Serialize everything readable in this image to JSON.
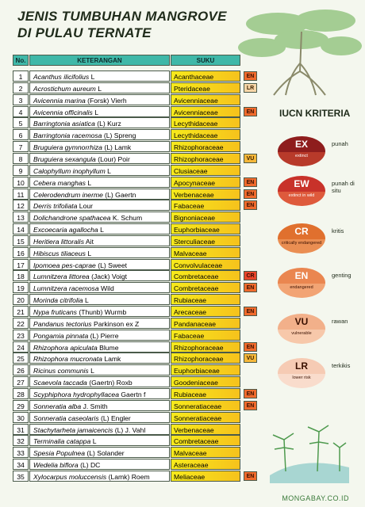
{
  "header": {
    "title_line1": "JENIS TUMBUHAN MANGROVE",
    "title_line2": "DI PULAU TERNATE"
  },
  "table": {
    "columns": [
      "No.",
      "KETERANGAN",
      "SUKU"
    ],
    "rows": [
      {
        "no": 1,
        "species": "Acanthus ilicifolius",
        "author": "L",
        "suku": "Acanthaceae",
        "status": "EN"
      },
      {
        "no": 2,
        "species": "Acrostichum aureum",
        "author": "L",
        "suku": "Pteridaceae",
        "status": "LR"
      },
      {
        "no": 3,
        "species": "Avicennia marina",
        "author": "(Forsk) Vierh",
        "suku": "Avicenniaceae"
      },
      {
        "no": 4,
        "species": "Avicennia officinalis",
        "author": "L",
        "suku": "Avicenniaceae",
        "status": "EN"
      },
      {
        "no": 5,
        "species": "Barringtonia asiatica",
        "author": "(L) Kurz",
        "suku": "Lecythidaceae"
      },
      {
        "no": 6,
        "species": "Barringtonia racemosa",
        "author": "(L) Spreng",
        "suku": "Lecythidaceae"
      },
      {
        "no": 7,
        "species": "Bruguiera gymnorrhiza",
        "author": "(L) Lamk",
        "suku": "Rhizophoraceae"
      },
      {
        "no": 8,
        "species": "Bruguiera sexangula",
        "author": "(Lour) Poir",
        "suku": "Rhizophoraceae",
        "status": "VU"
      },
      {
        "no": 9,
        "species": "Calophyllum inophyllum",
        "author": "L",
        "suku": "Clusiaceae"
      },
      {
        "no": 10,
        "species": "Cebera manghas",
        "author": "L",
        "suku": "Apocynaceae",
        "status": "EN"
      },
      {
        "no": 11,
        "species": "Celerodendrum inerme",
        "author": "(L) Gaertn",
        "suku": "Verbenaceae",
        "status": "EN"
      },
      {
        "no": 12,
        "species": "Derris trifoliata",
        "author": "Lour",
        "suku": "Fabaceae",
        "status": "EN"
      },
      {
        "no": 13,
        "species": "Dolichandrone spathacea",
        "author": "K. Schum",
        "suku": "Bignoniaceae"
      },
      {
        "no": 14,
        "species": "Excoecaria agallocha",
        "author": "L",
        "suku": "Euphorbiaceae"
      },
      {
        "no": 15,
        "species": "Heritiera littoralis",
        "author": "Ait",
        "suku": "Sterculiaceae"
      },
      {
        "no": 16,
        "species": "Hibiscus tiliaceus",
        "author": "L",
        "suku": "Malvaceae"
      },
      {
        "no": 17,
        "species": "Ipomoea pes-caprae",
        "author": "(L) Sweet",
        "suku": "Convolvulaceae"
      },
      {
        "no": 18,
        "species": "Lumnitzera littorea",
        "author": "(Jack) Voigt",
        "suku": "Combretaceae",
        "status": "CR"
      },
      {
        "no": 19,
        "species": "Lumnitzera racemosa",
        "author": "Wild",
        "suku": "Combretaceae",
        "status": "EN"
      },
      {
        "no": 20,
        "species": "Morinda citrifolia",
        "author": "L",
        "suku": "Rubiaceae"
      },
      {
        "no": 21,
        "species": "Nypa fruticans",
        "author": "(Thunb) Wurmb",
        "suku": "Arecaceae",
        "status": "EN"
      },
      {
        "no": 22,
        "species": "Pandanus tectorius",
        "author": "Parkinson ex Z",
        "suku": "Pandanaceae"
      },
      {
        "no": 23,
        "species": "Pongamia pinnata",
        "author": "(L) Pierre",
        "suku": "Fabaceae"
      },
      {
        "no": 24,
        "species": "Rhizophora apiculata",
        "author": "Blume",
        "suku": "Rhizophoraceae",
        "status": "EN"
      },
      {
        "no": 25,
        "species": "Rhizophora mucronata",
        "author": "Lamk",
        "suku": "Rhizophoraceae",
        "status": "VU"
      },
      {
        "no": 26,
        "species": "Ricinus communis",
        "author": "L",
        "suku": "Euphorbiaceae"
      },
      {
        "no": 27,
        "species": "Scaevola taccada",
        "author": "(Gaertn) Roxb",
        "suku": "Goodeniaceae"
      },
      {
        "no": 28,
        "species": "Scyphiphora hydrophyllacea",
        "author": "Gaertn f",
        "suku": "Rubiaceae",
        "status": "EN"
      },
      {
        "no": 29,
        "species": "Sonneratia alba",
        "author": "J. Smith",
        "suku": "Sonneratiaceae",
        "status": "EN"
      },
      {
        "no": 30,
        "species": "Sonneratia caseolaris",
        "author": "(L) Engler",
        "suku": "Sonneratiaceae"
      },
      {
        "no": 31,
        "species": "Stachytarheta jamaicencis",
        "author": "(L) J. Vahl",
        "suku": "Verbenaceae"
      },
      {
        "no": 32,
        "species": "Terminalia catappa",
        "author": "L",
        "suku": "Combretaceae"
      },
      {
        "no": 33,
        "species": "Spesia Populnea",
        "author": "(L) Solander",
        "suku": "Malvaceae"
      },
      {
        "no": 34,
        "species": "Wedelia biflora",
        "author": "(L) DC",
        "suku": "Asteraceae"
      },
      {
        "no": 35,
        "species": "Xylocarpus moluccensis",
        "author": "(Lamk) Roem",
        "suku": "Meliaceae",
        "status": "EN"
      }
    ]
  },
  "legend": {
    "title": "IUCN KRITERIA",
    "items": [
      {
        "code": "EX",
        "description": "extinct",
        "label": "punah"
      },
      {
        "code": "EW",
        "description": "extinct in wild",
        "label": "punah di situ"
      },
      {
        "code": "CR",
        "description": "critically endangered",
        "label": "kritis"
      },
      {
        "code": "EN",
        "description": "endangered",
        "label": "genting"
      },
      {
        "code": "VU",
        "description": "vulnerable",
        "label": "rawan"
      },
      {
        "code": "LR",
        "description": "lower risk",
        "label": "terkikis"
      }
    ]
  },
  "footer": "MONGABAY.CO.ID"
}
